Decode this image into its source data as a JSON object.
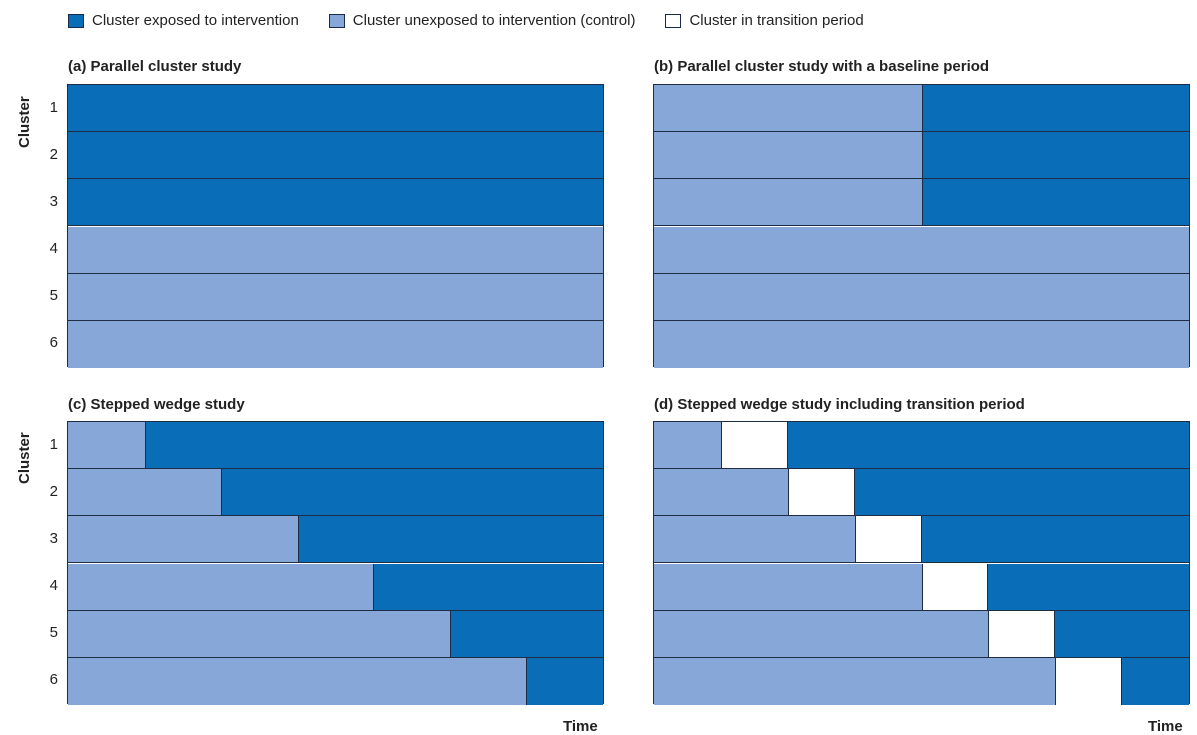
{
  "colors": {
    "exposed": "#0a6db7",
    "control": "#86a7d8",
    "transition": "#ffffff"
  },
  "legend": [
    {
      "key": "exposed",
      "label": "Cluster exposed to intervention"
    },
    {
      "key": "control",
      "label": "Cluster unexposed to intervention (control)"
    },
    {
      "key": "transition",
      "label": "Cluster in transition period"
    }
  ],
  "axis": {
    "ylabel": "Cluster",
    "xlabel": "Time",
    "clusters": [
      "1",
      "2",
      "3",
      "4",
      "5",
      "6"
    ]
  },
  "panels": [
    {
      "title": "(a) Parallel cluster study",
      "rows": [
        [
          [
            "exposed",
            1
          ]
        ],
        [
          [
            "exposed",
            1
          ]
        ],
        [
          [
            "exposed",
            1
          ]
        ],
        [
          [
            "control",
            1
          ]
        ],
        [
          [
            "control",
            1
          ]
        ],
        [
          [
            "control",
            1
          ]
        ]
      ]
    },
    {
      "title": "(b) Parallel cluster study with a baseline period",
      "rows": [
        [
          [
            "control",
            0.5
          ],
          [
            "exposed",
            0.5
          ]
        ],
        [
          [
            "control",
            0.5
          ],
          [
            "exposed",
            0.5
          ]
        ],
        [
          [
            "control",
            0.5
          ],
          [
            "exposed",
            0.5
          ]
        ],
        [
          [
            "control",
            1
          ]
        ],
        [
          [
            "control",
            1
          ]
        ],
        [
          [
            "control",
            1
          ]
        ]
      ]
    },
    {
      "title": "(c) Stepped wedge study",
      "rows": [
        [
          [
            "control",
            0.143
          ],
          [
            "exposed",
            0.857
          ]
        ],
        [
          [
            "control",
            0.286
          ],
          [
            "exposed",
            0.714
          ]
        ],
        [
          [
            "control",
            0.429
          ],
          [
            "exposed",
            0.571
          ]
        ],
        [
          [
            "control",
            0.571
          ],
          [
            "exposed",
            0.429
          ]
        ],
        [
          [
            "control",
            0.714
          ],
          [
            "exposed",
            0.286
          ]
        ],
        [
          [
            "control",
            0.857
          ],
          [
            "exposed",
            0.143
          ]
        ]
      ]
    },
    {
      "title": "(d) Stepped wedge study including transition period",
      "rows": [
        [
          [
            "control",
            0.125
          ],
          [
            "transition",
            0.125
          ],
          [
            "exposed",
            0.75
          ]
        ],
        [
          [
            "control",
            0.25
          ],
          [
            "transition",
            0.125
          ],
          [
            "exposed",
            0.625
          ]
        ],
        [
          [
            "control",
            0.375
          ],
          [
            "transition",
            0.125
          ],
          [
            "exposed",
            0.5
          ]
        ],
        [
          [
            "control",
            0.5
          ],
          [
            "transition",
            0.125
          ],
          [
            "exposed",
            0.375
          ]
        ],
        [
          [
            "control",
            0.625
          ],
          [
            "transition",
            0.125
          ],
          [
            "exposed",
            0.25
          ]
        ],
        [
          [
            "control",
            0.75
          ],
          [
            "transition",
            0.125
          ],
          [
            "exposed",
            0.125
          ]
        ]
      ]
    }
  ]
}
